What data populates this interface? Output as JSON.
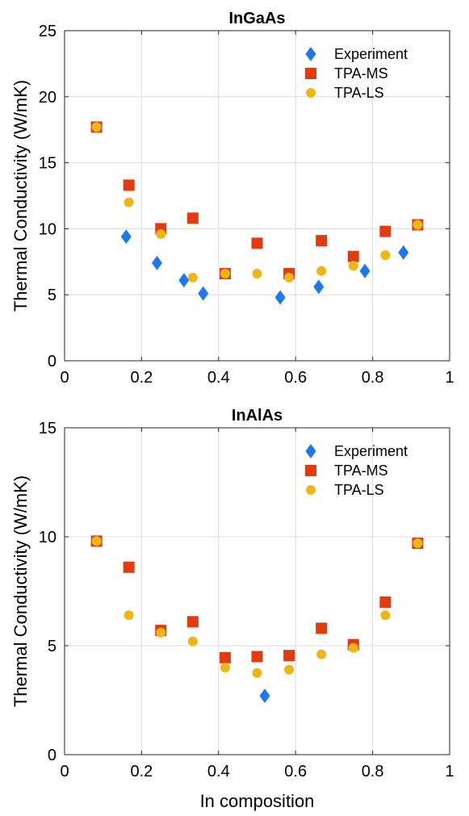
{
  "chart_data": [
    {
      "type": "scatter",
      "title": "InGaAs",
      "xlabel": "",
      "ylabel": "Thermal Conductivity (W/mK)",
      "xlim": [
        0,
        1
      ],
      "ylim": [
        0,
        25
      ],
      "xticks": [
        "0",
        "0.2",
        "0.4",
        "0.6",
        "0.8",
        "1"
      ],
      "yticks": [
        "0",
        "5",
        "10",
        "15",
        "20",
        "25"
      ],
      "grid": true,
      "legend_position": "top-right",
      "series": [
        {
          "name": "Experiment",
          "marker": "diamond",
          "color": "#1f77f0",
          "points": [
            [
              0.16,
              9.4
            ],
            [
              0.24,
              7.4
            ],
            [
              0.31,
              6.1
            ],
            [
              0.36,
              5.1
            ],
            [
              0.56,
              4.8
            ],
            [
              0.66,
              5.6
            ],
            [
              0.78,
              6.8
            ],
            [
              0.88,
              8.2
            ]
          ]
        },
        {
          "name": "TPA-MS",
          "marker": "square",
          "color": "#e03c10",
          "points": [
            [
              0.083,
              17.7
            ],
            [
              0.167,
              13.3
            ],
            [
              0.25,
              10.0
            ],
            [
              0.333,
              10.8
            ],
            [
              0.417,
              6.6
            ],
            [
              0.5,
              8.9
            ],
            [
              0.583,
              6.6
            ],
            [
              0.667,
              9.1
            ],
            [
              0.75,
              7.9
            ],
            [
              0.833,
              9.8
            ],
            [
              0.917,
              10.3
            ]
          ]
        },
        {
          "name": "TPA-LS",
          "marker": "circle",
          "color": "#efb515",
          "points": [
            [
              0.083,
              17.7
            ],
            [
              0.167,
              12.0
            ],
            [
              0.25,
              9.6
            ],
            [
              0.333,
              6.3
            ],
            [
              0.417,
              6.6
            ],
            [
              0.5,
              6.6
            ],
            [
              0.583,
              6.3
            ],
            [
              0.667,
              6.8
            ],
            [
              0.75,
              7.2
            ],
            [
              0.833,
              8.0
            ],
            [
              0.917,
              10.3
            ]
          ]
        }
      ]
    },
    {
      "type": "scatter",
      "title": "InAlAs",
      "xlabel": "In composition",
      "ylabel": "Thermal Conductivity (W/mK)",
      "xlim": [
        0,
        1
      ],
      "ylim": [
        0,
        15
      ],
      "xticks": [
        "0",
        "0.2",
        "0.4",
        "0.6",
        "0.8",
        "1"
      ],
      "yticks": [
        "0",
        "5",
        "10",
        "15"
      ],
      "grid": true,
      "legend_position": "top-right",
      "series": [
        {
          "name": "Experiment",
          "marker": "diamond",
          "color": "#1f77f0",
          "points": [
            [
              0.52,
              2.7
            ]
          ]
        },
        {
          "name": "TPA-MS",
          "marker": "square",
          "color": "#e03c10",
          "points": [
            [
              0.083,
              9.8
            ],
            [
              0.167,
              8.6
            ],
            [
              0.25,
              5.7
            ],
            [
              0.333,
              6.1
            ],
            [
              0.417,
              4.45
            ],
            [
              0.5,
              4.5
            ],
            [
              0.583,
              4.55
            ],
            [
              0.667,
              5.8
            ],
            [
              0.75,
              5.05
            ],
            [
              0.833,
              7.0
            ],
            [
              0.917,
              9.7
            ]
          ]
        },
        {
          "name": "TPA-LS",
          "marker": "circle",
          "color": "#efb515",
          "points": [
            [
              0.083,
              9.8
            ],
            [
              0.167,
              6.4
            ],
            [
              0.25,
              5.6
            ],
            [
              0.333,
              5.2
            ],
            [
              0.417,
              4.0
            ],
            [
              0.5,
              3.75
            ],
            [
              0.583,
              3.9
            ],
            [
              0.667,
              4.6
            ],
            [
              0.75,
              4.9
            ],
            [
              0.833,
              6.4
            ],
            [
              0.917,
              9.7
            ]
          ]
        }
      ]
    }
  ]
}
